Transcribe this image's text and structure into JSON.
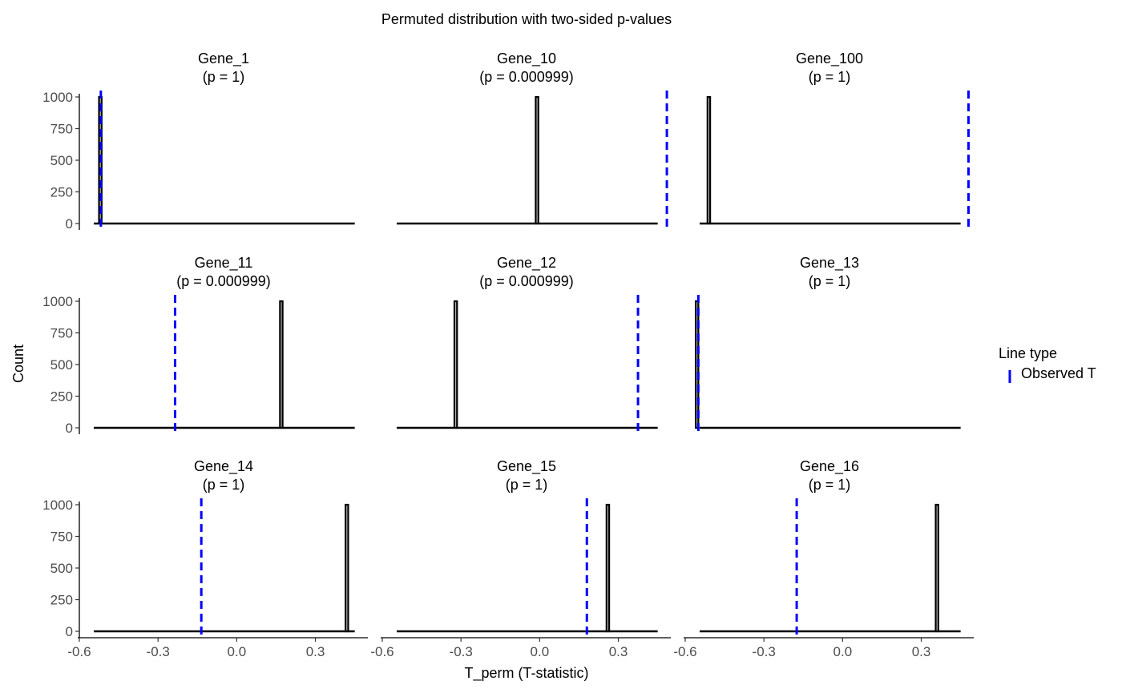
{
  "chart_data": {
    "type": "bar",
    "title": "Permuted distribution with two-sided p-values",
    "xlabel": "T_perm (T-statistic)",
    "ylabel": "Count",
    "xlim": [
      -0.6,
      0.5
    ],
    "ylim": [
      0,
      1000
    ],
    "x_ticks": [
      -0.6,
      -0.3,
      0.0,
      0.3
    ],
    "x_tick_labels": [
      "-0.6",
      "-0.3",
      "0.0",
      "0.3"
    ],
    "y_ticks": [
      0,
      250,
      500,
      750,
      1000
    ],
    "y_tick_labels": [
      "0",
      "250",
      "500",
      "750",
      "1000"
    ],
    "grid": false,
    "legend": {
      "title": "Line type",
      "entries": [
        {
          "label": "Observed T",
          "color": "#0000ff"
        }
      ],
      "placement": "right"
    },
    "bar_fill": "#c8c8c8",
    "bar_stroke": "#000000",
    "observed_color": "#0000ff",
    "panels": [
      {
        "gene": "Gene_1",
        "p_label": "(p = 1)",
        "bar_center": -0.52,
        "bar_count": 1000,
        "observed_t": -0.518
      },
      {
        "gene": "Gene_10",
        "p_label": "(p = 0.000999)",
        "bar_center": -0.01,
        "bar_count": 1000,
        "observed_t": 0.485
      },
      {
        "gene": "Gene_100",
        "p_label": "(p = 1)",
        "bar_center": -0.51,
        "bar_count": 1000,
        "observed_t": 0.48
      },
      {
        "gene": "Gene_11",
        "p_label": "(p = 0.000999)",
        "bar_center": 0.17,
        "bar_count": 1000,
        "observed_t": -0.235
      },
      {
        "gene": "Gene_12",
        "p_label": "(p = 0.000999)",
        "bar_center": -0.32,
        "bar_count": 1000,
        "observed_t": 0.375
      },
      {
        "gene": "Gene_13",
        "p_label": "(p = 1)",
        "bar_center": -0.555,
        "bar_count": 1000,
        "observed_t": -0.55
      },
      {
        "gene": "Gene_14",
        "p_label": "(p = 1)",
        "bar_center": 0.42,
        "bar_count": 1000,
        "observed_t": -0.135
      },
      {
        "gene": "Gene_15",
        "p_label": "(p = 1)",
        "bar_center": 0.26,
        "bar_count": 1000,
        "observed_t": 0.18
      },
      {
        "gene": "Gene_16",
        "p_label": "(p = 1)",
        "bar_center": 0.36,
        "bar_count": 1000,
        "observed_t": -0.175
      }
    ]
  }
}
